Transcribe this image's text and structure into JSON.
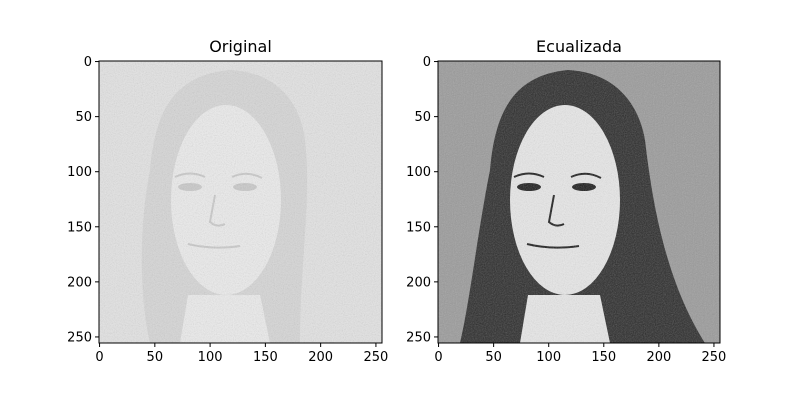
{
  "panels": [
    {
      "title": "Original",
      "x_ticks": [
        "0",
        "50",
        "100",
        "150",
        "200",
        "250"
      ],
      "y_ticks": [
        "0",
        "50",
        "100",
        "150",
        "200",
        "250"
      ],
      "x_range": [
        0,
        255
      ],
      "y_range": [
        0,
        255
      ],
      "tone": "low-contrast",
      "colors": {
        "background": "#e3e3e3",
        "face": "#ececec",
        "hair": "#d6d6d6",
        "features": "#c9c9c9"
      }
    },
    {
      "title": "Ecualizada",
      "x_ticks": [
        "0",
        "50",
        "100",
        "150",
        "200",
        "250"
      ],
      "y_ticks": [
        "0",
        "50",
        "100",
        "150",
        "200",
        "250"
      ],
      "x_range": [
        0,
        255
      ],
      "y_range": [
        0,
        255
      ],
      "tone": "high-contrast",
      "colors": {
        "background": "#9a9a9a",
        "face": "#e8e8e8",
        "hair": "#2a2a2a",
        "features": "#1a1a1a"
      }
    }
  ]
}
